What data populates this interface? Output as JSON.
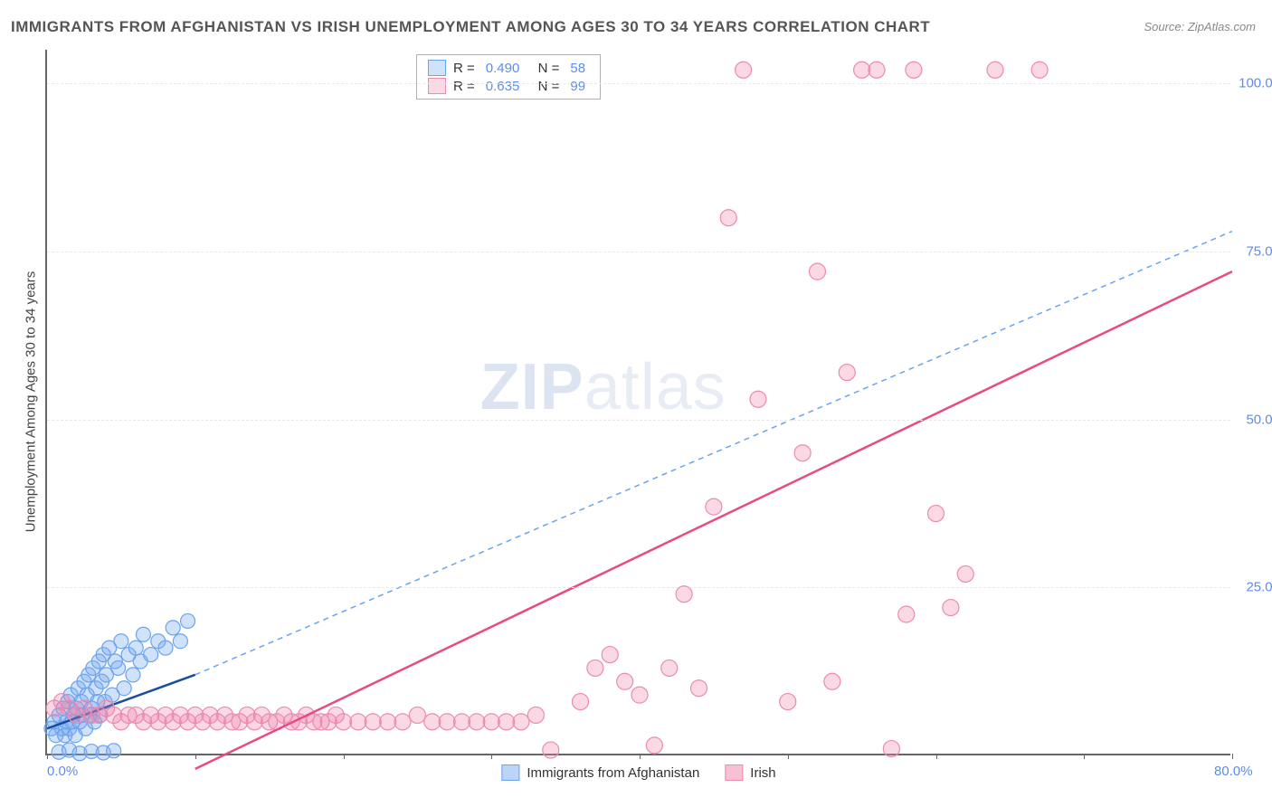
{
  "title": "IMMIGRANTS FROM AFGHANISTAN VS IRISH UNEMPLOYMENT AMONG AGES 30 TO 34 YEARS CORRELATION CHART",
  "source": "Source: ZipAtlas.com",
  "y_axis_title": "Unemployment Among Ages 30 to 34 years",
  "watermark_a": "ZIP",
  "watermark_b": "atlas",
  "chart": {
    "type": "scatter",
    "background_color": "#ffffff",
    "grid_color": "#e8e8e8",
    "axis_color": "#666666",
    "tick_label_color": "#5b8def",
    "xlim": [
      0,
      80
    ],
    "ylim": [
      0,
      105
    ],
    "x_ticks": [
      0,
      10,
      20,
      30,
      40,
      50,
      60,
      70,
      80
    ],
    "x_tick_labels": {
      "0": "0.0%",
      "80": "80.0%"
    },
    "y_ticks": [
      25,
      50,
      75,
      100
    ],
    "y_tick_labels": {
      "25": "25.0%",
      "50": "50.0%",
      "75": "75.0%",
      "100": "100.0%"
    },
    "series": [
      {
        "name": "Immigrants from Afghanistan",
        "fill_color": "rgba(120, 170, 240, 0.35)",
        "stroke_color": "#6aa3ef",
        "marker_radius": 8,
        "R": "0.490",
        "N": "58",
        "trend_solid": {
          "x1": 0,
          "y1": 4,
          "x2": 10,
          "y2": 12,
          "color": "#1a4d9e",
          "width": 2.5
        },
        "trend_dash": {
          "x1": 10,
          "y1": 12,
          "x2": 80,
          "y2": 78,
          "color": "#6aa3ef",
          "width": 1.5
        },
        "points": [
          [
            0.3,
            4
          ],
          [
            0.5,
            5
          ],
          [
            0.6,
            3
          ],
          [
            0.8,
            6
          ],
          [
            1.0,
            4
          ],
          [
            1.1,
            7
          ],
          [
            1.2,
            3
          ],
          [
            1.3,
            5
          ],
          [
            1.4,
            8
          ],
          [
            1.5,
            4
          ],
          [
            1.6,
            9
          ],
          [
            1.7,
            5
          ],
          [
            1.8,
            6
          ],
          [
            1.9,
            3
          ],
          [
            2.0,
            7
          ],
          [
            2.1,
            10
          ],
          [
            2.2,
            5
          ],
          [
            2.3,
            8
          ],
          [
            2.4,
            6
          ],
          [
            2.5,
            11
          ],
          [
            2.6,
            4
          ],
          [
            2.7,
            9
          ],
          [
            2.8,
            12
          ],
          [
            2.9,
            6
          ],
          [
            3.0,
            7
          ],
          [
            3.1,
            13
          ],
          [
            3.2,
            5
          ],
          [
            3.3,
            10
          ],
          [
            3.4,
            8
          ],
          [
            3.5,
            14
          ],
          [
            3.6,
            6
          ],
          [
            3.7,
            11
          ],
          [
            3.8,
            15
          ],
          [
            3.9,
            8
          ],
          [
            4.0,
            12
          ],
          [
            4.2,
            16
          ],
          [
            4.4,
            9
          ],
          [
            4.6,
            14
          ],
          [
            4.8,
            13
          ],
          [
            5.0,
            17
          ],
          [
            5.2,
            10
          ],
          [
            5.5,
            15
          ],
          [
            5.8,
            12
          ],
          [
            6.0,
            16
          ],
          [
            6.3,
            14
          ],
          [
            6.5,
            18
          ],
          [
            7.0,
            15
          ],
          [
            7.5,
            17
          ],
          [
            8.0,
            16
          ],
          [
            8.5,
            19
          ],
          [
            9.0,
            17
          ],
          [
            0.8,
            0.5
          ],
          [
            1.5,
            0.8
          ],
          [
            2.2,
            0.3
          ],
          [
            3.0,
            0.6
          ],
          [
            3.8,
            0.4
          ],
          [
            4.5,
            0.7
          ],
          [
            9.5,
            20
          ]
        ]
      },
      {
        "name": "Irish",
        "fill_color": "rgba(240, 130, 170, 0.3)",
        "stroke_color": "#ec8ab0",
        "marker_radius": 9,
        "R": "0.635",
        "N": "99",
        "trend_solid": {
          "x1": 10,
          "y1": -2,
          "x2": 80,
          "y2": 72,
          "color": "#e84a85",
          "width": 2.5
        },
        "points": [
          [
            0.5,
            7
          ],
          [
            1.0,
            8
          ],
          [
            1.5,
            7
          ],
          [
            2.0,
            6
          ],
          [
            2.5,
            7
          ],
          [
            3.0,
            6
          ],
          [
            3.5,
            6
          ],
          [
            4.0,
            7
          ],
          [
            4.5,
            6
          ],
          [
            5.0,
            5
          ],
          [
            5.5,
            6
          ],
          [
            6.0,
            6
          ],
          [
            6.5,
            5
          ],
          [
            7.0,
            6
          ],
          [
            7.5,
            5
          ],
          [
            8.0,
            6
          ],
          [
            8.5,
            5
          ],
          [
            9.0,
            6
          ],
          [
            9.5,
            5
          ],
          [
            10.0,
            6
          ],
          [
            10.5,
            5
          ],
          [
            11.0,
            6
          ],
          [
            11.5,
            5
          ],
          [
            12.0,
            6
          ],
          [
            12.5,
            5
          ],
          [
            13.0,
            5
          ],
          [
            13.5,
            6
          ],
          [
            14.0,
            5
          ],
          [
            14.5,
            6
          ],
          [
            15.0,
            5
          ],
          [
            15.5,
            5
          ],
          [
            16.0,
            6
          ],
          [
            16.5,
            5
          ],
          [
            17.0,
            5
          ],
          [
            17.5,
            6
          ],
          [
            18.0,
            5
          ],
          [
            18.5,
            5
          ],
          [
            19.0,
            5
          ],
          [
            19.5,
            6
          ],
          [
            20.0,
            5
          ],
          [
            21.0,
            5
          ],
          [
            22.0,
            5
          ],
          [
            23.0,
            5
          ],
          [
            24.0,
            5
          ],
          [
            25.0,
            6
          ],
          [
            26.0,
            5
          ],
          [
            27.0,
            5
          ],
          [
            28.0,
            5
          ],
          [
            29.0,
            5
          ],
          [
            30.0,
            5
          ],
          [
            31.0,
            5
          ],
          [
            32.0,
            5
          ],
          [
            33.0,
            6
          ],
          [
            34.0,
            0.8
          ],
          [
            36.0,
            8
          ],
          [
            37.0,
            13
          ],
          [
            38.0,
            15
          ],
          [
            39.0,
            11
          ],
          [
            40.0,
            9
          ],
          [
            41.0,
            1.5
          ],
          [
            42.0,
            13
          ],
          [
            43.0,
            24
          ],
          [
            44.0,
            10
          ],
          [
            45.0,
            37
          ],
          [
            46.0,
            80
          ],
          [
            47.0,
            102
          ],
          [
            48.0,
            53
          ],
          [
            50.0,
            8
          ],
          [
            51.0,
            45
          ],
          [
            52.0,
            72
          ],
          [
            53.0,
            11
          ],
          [
            54.0,
            57
          ],
          [
            55.0,
            102
          ],
          [
            56.0,
            102
          ],
          [
            57.0,
            1
          ],
          [
            58.0,
            21
          ],
          [
            58.5,
            102
          ],
          [
            60.0,
            36
          ],
          [
            61.0,
            22
          ],
          [
            62.0,
            27
          ],
          [
            64.0,
            102
          ],
          [
            67.0,
            102
          ]
        ]
      }
    ],
    "legend_bottom": [
      {
        "label": "Immigrants from Afghanistan",
        "fill": "rgba(120,170,240,0.5)",
        "stroke": "#6aa3ef"
      },
      {
        "label": "Irish",
        "fill": "rgba(240,130,170,0.5)",
        "stroke": "#ec8ab0"
      }
    ]
  }
}
